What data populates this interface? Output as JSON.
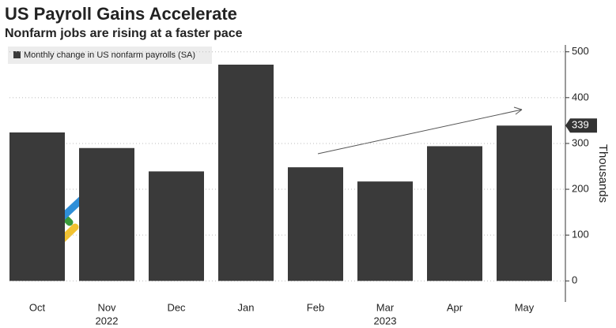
{
  "chart_data": {
    "type": "bar",
    "title": "US Payroll Gains Accelerate",
    "subtitle": "Nonfarm jobs are rising at a faster pace",
    "series_name": "Monthly change in US nonfarm payrolls (SA)",
    "y_axis_label": "Thousands",
    "categories": [
      "Oct",
      "Nov",
      "Dec",
      "Jan",
      "Feb",
      "Mar",
      "Apr",
      "May"
    ],
    "years": [
      null,
      "2022",
      null,
      null,
      null,
      "2023",
      null,
      null
    ],
    "values": [
      324,
      290,
      239,
      472,
      248,
      217,
      294,
      339
    ],
    "color": "#3a3a3a",
    "ylim": [
      -46,
      515
    ],
    "yticks": [
      0,
      100,
      200,
      300,
      400,
      500
    ],
    "grid": true
  }
}
